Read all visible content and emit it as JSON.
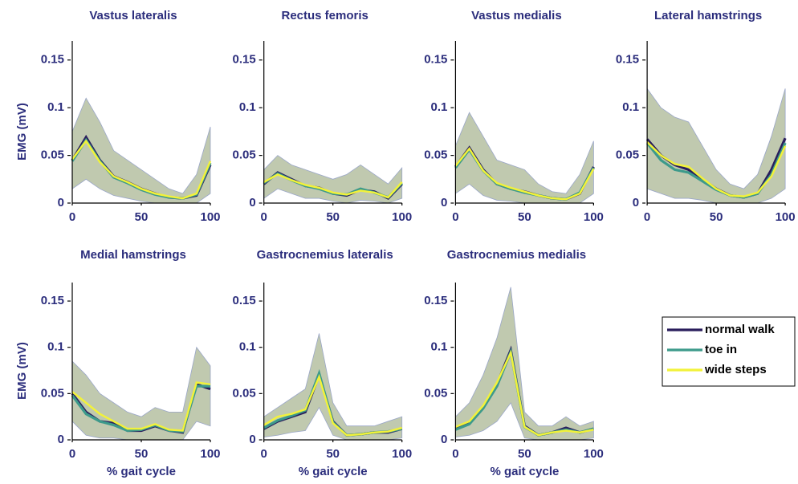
{
  "chart_data": [
    {
      "type": "line",
      "title": "Vastus lateralis",
      "ylabel": "EMG (mV)",
      "x": [
        0,
        10,
        20,
        30,
        40,
        50,
        60,
        70,
        80,
        90,
        100
      ],
      "xlim": [
        0,
        100
      ],
      "ylim": [
        0,
        0.17
      ],
      "xticks": [
        0,
        50,
        100
      ],
      "yticks": [
        0,
        0.05,
        0.1,
        0.15
      ],
      "band_lower": [
        0.015,
        0.025,
        0.015,
        0.008,
        0.005,
        0.002,
        0,
        0,
        0,
        0,
        0.01
      ],
      "band_upper": [
        0.075,
        0.11,
        0.085,
        0.055,
        0.045,
        0.035,
        0.025,
        0.015,
        0.01,
        0.03,
        0.08
      ],
      "series": [
        {
          "color": "#2a1e5c",
          "values": [
            0.045,
            0.069,
            0.045,
            0.028,
            0.022,
            0.015,
            0.01,
            0.006,
            0.005,
            0.008,
            0.04
          ]
        },
        {
          "color": "#3d9a8b",
          "values": [
            0.044,
            0.066,
            0.044,
            0.027,
            0.021,
            0.014,
            0.009,
            0.006,
            0.005,
            0.009,
            0.042
          ]
        },
        {
          "color": "#f2f23a",
          "values": [
            0.046,
            0.065,
            0.043,
            0.028,
            0.022,
            0.015,
            0.01,
            0.007,
            0.005,
            0.01,
            0.044
          ]
        }
      ]
    },
    {
      "type": "line",
      "title": "Rectus femoris",
      "x": [
        0,
        10,
        20,
        30,
        40,
        50,
        60,
        70,
        80,
        90,
        100
      ],
      "xlim": [
        0,
        100
      ],
      "ylim": [
        0,
        0.17
      ],
      "xticks": [
        0,
        50,
        100
      ],
      "yticks": [
        0,
        0.05,
        0.1,
        0.15
      ],
      "band_lower": [
        0.005,
        0.015,
        0.01,
        0.005,
        0.005,
        0.002,
        0,
        0.003,
        0.002,
        0,
        0.005
      ],
      "band_upper": [
        0.035,
        0.05,
        0.04,
        0.035,
        0.03,
        0.025,
        0.03,
        0.04,
        0.03,
        0.02,
        0.037
      ],
      "series": [
        {
          "color": "#2a1e5c",
          "values": [
            0.02,
            0.032,
            0.025,
            0.018,
            0.016,
            0.01,
            0.008,
            0.014,
            0.012,
            0.005,
            0.02
          ]
        },
        {
          "color": "#3d9a8b",
          "values": [
            0.021,
            0.031,
            0.024,
            0.018,
            0.015,
            0.01,
            0.009,
            0.015,
            0.011,
            0.006,
            0.021
          ]
        },
        {
          "color": "#f2f23a",
          "values": [
            0.022,
            0.03,
            0.024,
            0.019,
            0.016,
            0.011,
            0.009,
            0.013,
            0.011,
            0.006,
            0.022
          ]
        }
      ]
    },
    {
      "type": "line",
      "title": "Vastus medialis",
      "x": [
        0,
        10,
        20,
        30,
        40,
        50,
        60,
        70,
        80,
        90,
        100
      ],
      "xlim": [
        0,
        100
      ],
      "ylim": [
        0,
        0.17
      ],
      "xticks": [
        0,
        50,
        100
      ],
      "yticks": [
        0,
        0.05,
        0.1,
        0.15
      ],
      "band_lower": [
        0.01,
        0.02,
        0.008,
        0.003,
        0.002,
        0,
        0,
        0,
        0,
        0,
        0.01
      ],
      "band_upper": [
        0.06,
        0.095,
        0.07,
        0.045,
        0.04,
        0.035,
        0.02,
        0.012,
        0.01,
        0.03,
        0.065
      ],
      "series": [
        {
          "color": "#2a1e5c",
          "values": [
            0.038,
            0.058,
            0.035,
            0.02,
            0.015,
            0.012,
            0.008,
            0.005,
            0.004,
            0.01,
            0.038
          ]
        },
        {
          "color": "#3d9a8b",
          "values": [
            0.037,
            0.056,
            0.034,
            0.02,
            0.015,
            0.011,
            0.008,
            0.005,
            0.004,
            0.011,
            0.037
          ]
        },
        {
          "color": "#f2f23a",
          "values": [
            0.039,
            0.057,
            0.034,
            0.021,
            0.016,
            0.012,
            0.008,
            0.005,
            0.004,
            0.01,
            0.036
          ]
        }
      ]
    },
    {
      "type": "line",
      "title": "Lateral hamstrings",
      "x": [
        0,
        10,
        20,
        30,
        40,
        50,
        60,
        70,
        80,
        90,
        100
      ],
      "xlim": [
        0,
        100
      ],
      "ylim": [
        0,
        0.17
      ],
      "xticks": [
        0,
        50,
        100
      ],
      "yticks": [
        0,
        0.05,
        0.1,
        0.15
      ],
      "band_lower": [
        0.015,
        0.01,
        0.005,
        0.005,
        0.003,
        0,
        0,
        0,
        0,
        0.005,
        0.015
      ],
      "band_upper": [
        0.12,
        0.1,
        0.09,
        0.085,
        0.06,
        0.035,
        0.02,
        0.015,
        0.03,
        0.07,
        0.12
      ],
      "series": [
        {
          "color": "#2a1e5c",
          "values": [
            0.067,
            0.05,
            0.04,
            0.035,
            0.025,
            0.015,
            0.008,
            0.006,
            0.01,
            0.035,
            0.068
          ]
        },
        {
          "color": "#3d9a8b",
          "values": [
            0.063,
            0.045,
            0.035,
            0.032,
            0.023,
            0.014,
            0.008,
            0.006,
            0.01,
            0.03,
            0.063
          ]
        },
        {
          "color": "#f2f23a",
          "values": [
            0.064,
            0.05,
            0.041,
            0.038,
            0.026,
            0.015,
            0.008,
            0.007,
            0.011,
            0.028,
            0.06
          ]
        }
      ]
    },
    {
      "type": "line",
      "title": "Medial hamstrings",
      "ylabel": "EMG (mV)",
      "xlabel": "% gait cycle",
      "x": [
        0,
        10,
        20,
        30,
        40,
        50,
        60,
        70,
        80,
        90,
        100
      ],
      "xlim": [
        0,
        100
      ],
      "ylim": [
        0,
        0.17
      ],
      "xticks": [
        0,
        50,
        100
      ],
      "yticks": [
        0,
        0.05,
        0.1,
        0.15
      ],
      "band_lower": [
        0.02,
        0.005,
        0.002,
        0.002,
        0,
        0,
        0,
        0,
        0,
        0.02,
        0.015
      ],
      "band_upper": [
        0.085,
        0.07,
        0.05,
        0.04,
        0.03,
        0.025,
        0.035,
        0.03,
        0.03,
        0.1,
        0.08
      ],
      "series": [
        {
          "color": "#2a1e5c",
          "values": [
            0.05,
            0.03,
            0.02,
            0.018,
            0.01,
            0.01,
            0.015,
            0.01,
            0.008,
            0.06,
            0.055
          ]
        },
        {
          "color": "#3d9a8b",
          "values": [
            0.048,
            0.028,
            0.02,
            0.016,
            0.01,
            0.011,
            0.016,
            0.01,
            0.009,
            0.058,
            0.058
          ]
        },
        {
          "color": "#f2f23a",
          "values": [
            0.052,
            0.04,
            0.028,
            0.02,
            0.012,
            0.012,
            0.017,
            0.011,
            0.01,
            0.062,
            0.06
          ]
        }
      ]
    },
    {
      "type": "line",
      "title": "Gastrocnemius lateralis",
      "xlabel": "% gait cycle",
      "x": [
        0,
        10,
        20,
        30,
        40,
        50,
        60,
        70,
        80,
        90,
        100
      ],
      "xlim": [
        0,
        100
      ],
      "ylim": [
        0,
        0.17
      ],
      "xticks": [
        0,
        50,
        100
      ],
      "yticks": [
        0,
        0.05,
        0.1,
        0.15
      ],
      "band_lower": [
        0.003,
        0.005,
        0.008,
        0.01,
        0.035,
        0.005,
        0,
        0,
        0,
        0,
        0.002
      ],
      "band_upper": [
        0.025,
        0.035,
        0.045,
        0.055,
        0.115,
        0.04,
        0.015,
        0.015,
        0.015,
        0.02,
        0.025
      ],
      "series": [
        {
          "color": "#2a1e5c",
          "values": [
            0.012,
            0.02,
            0.025,
            0.03,
            0.07,
            0.02,
            0.005,
            0.006,
            0.008,
            0.008,
            0.012
          ]
        },
        {
          "color": "#3d9a8b",
          "values": [
            0.013,
            0.021,
            0.026,
            0.032,
            0.072,
            0.019,
            0.005,
            0.006,
            0.008,
            0.009,
            0.012
          ]
        },
        {
          "color": "#f2f23a",
          "values": [
            0.016,
            0.025,
            0.028,
            0.033,
            0.068,
            0.018,
            0.005,
            0.006,
            0.008,
            0.009,
            0.013
          ]
        }
      ]
    },
    {
      "type": "line",
      "title": "Gastrocnemius medialis",
      "xlabel": "% gait cycle",
      "legend": "right",
      "x": [
        0,
        10,
        20,
        30,
        40,
        50,
        60,
        70,
        80,
        90,
        100
      ],
      "xlim": [
        0,
        100
      ],
      "ylim": [
        0,
        0.17
      ],
      "xticks": [
        0,
        50,
        100
      ],
      "yticks": [
        0,
        0.05,
        0.1,
        0.15
      ],
      "band_lower": [
        0.003,
        0.005,
        0.01,
        0.02,
        0.04,
        0.002,
        0,
        0,
        0,
        0,
        0.002
      ],
      "band_upper": [
        0.025,
        0.04,
        0.07,
        0.11,
        0.165,
        0.03,
        0.015,
        0.015,
        0.025,
        0.015,
        0.02
      ],
      "series": [
        {
          "name": "normal walk",
          "color": "#2a1e5c",
          "values": [
            0.012,
            0.018,
            0.035,
            0.06,
            0.097,
            0.015,
            0.005,
            0.008,
            0.013,
            0.008,
            0.012
          ]
        },
        {
          "name": "toe in",
          "color": "#3d9a8b",
          "values": [
            0.011,
            0.017,
            0.034,
            0.058,
            0.095,
            0.014,
            0.005,
            0.008,
            0.011,
            0.008,
            0.012
          ]
        },
        {
          "name": "wide steps",
          "color": "#f2f23a",
          "values": [
            0.014,
            0.02,
            0.037,
            0.062,
            0.094,
            0.014,
            0.005,
            0.008,
            0.01,
            0.008,
            0.011
          ]
        }
      ]
    }
  ]
}
